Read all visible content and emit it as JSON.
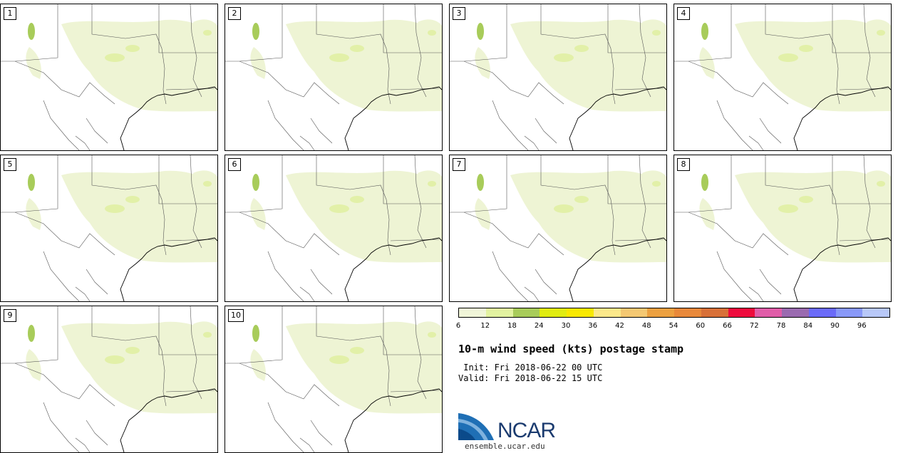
{
  "panels": [
    {
      "label": "1"
    },
    {
      "label": "2"
    },
    {
      "label": "3"
    },
    {
      "label": "4"
    },
    {
      "label": "5"
    },
    {
      "label": "6"
    },
    {
      "label": "7"
    },
    {
      "label": "8"
    },
    {
      "label": "9"
    },
    {
      "label": "10"
    }
  ],
  "colorbar": {
    "colors": [
      "#f0f5d8",
      "#e2f2a0",
      "#a8cc5a",
      "#e0ec10",
      "#f8e800",
      "#fbe88a",
      "#f4c872",
      "#eca040",
      "#e8883a",
      "#d87038",
      "#ee0a3c",
      "#e05ca8",
      "#9a6ab0",
      "#6a6af8",
      "#8898f8",
      "#b8c8f8"
    ],
    "ticks": [
      "6",
      "12",
      "18",
      "24",
      "30",
      "36",
      "42",
      "48",
      "54",
      "60",
      "66",
      "72",
      "78",
      "84",
      "90",
      "96"
    ]
  },
  "title": "10-m wind speed (kts) postage stamp",
  "init": " Init: Fri 2018-06-22 00 UTC",
  "valid": "Valid: Fri 2018-06-22 15 UTC",
  "logo": {
    "text": "NCAR",
    "url": "ensemble.ucar.edu"
  }
}
